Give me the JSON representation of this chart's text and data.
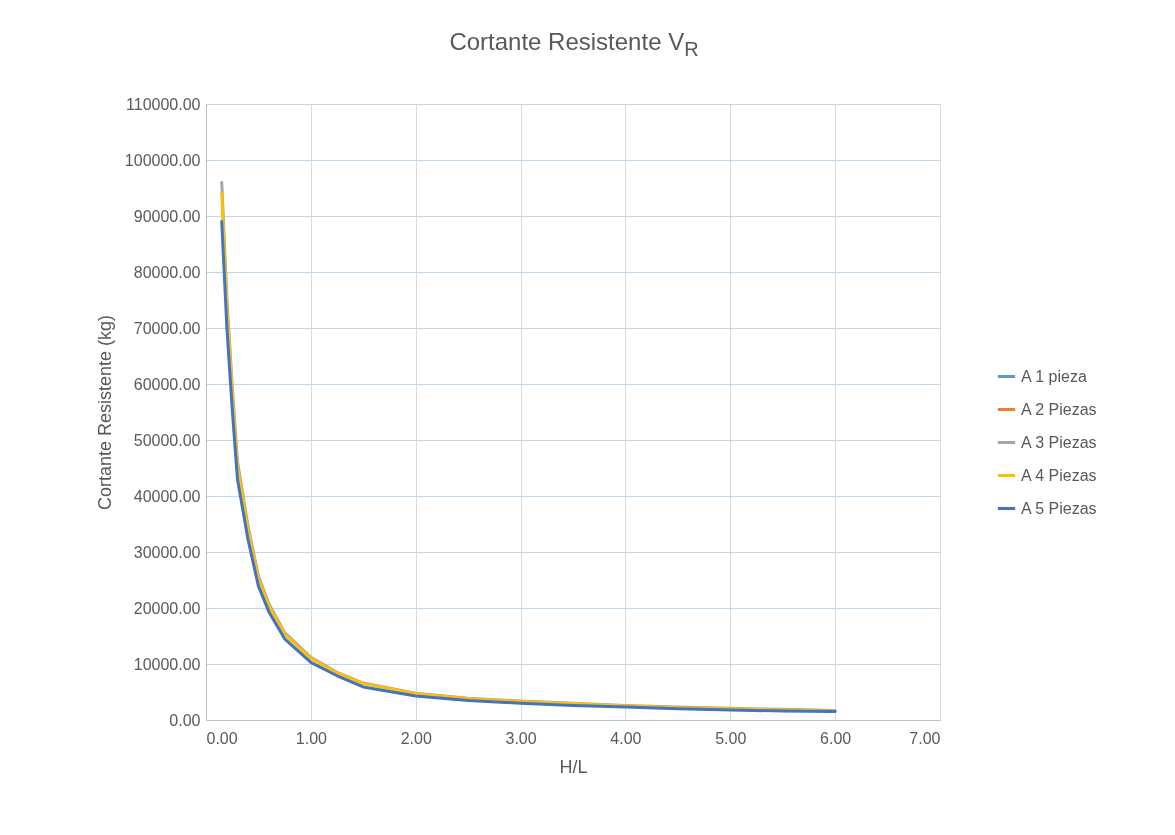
{
  "chart_data": {
    "type": "line",
    "title": "Cortante Resistente V$_{R}$",
    "xlabel": "H/L",
    "ylabel": "Cortante Resistente (kg)",
    "x": [
      0.15,
      0.2,
      0.25,
      0.3,
      0.4,
      0.5,
      0.6,
      0.75,
      1,
      1.25,
      1.5,
      2,
      2.5,
      3,
      3.5,
      4,
      4.5,
      5,
      5.5,
      6
    ],
    "series": [
      {
        "name": "A 1 pieza",
        "color": "#5b9bd5",
        "values": [
          null,
          null,
          null,
          null,
          null,
          null,
          null,
          null,
          null,
          null,
          null,
          null,
          null,
          null,
          null,
          null,
          null,
          null,
          null,
          null
        ]
      },
      {
        "name": "A 2 Piezas",
        "color": "#ed7d31",
        "values": [
          null,
          null,
          null,
          null,
          null,
          null,
          null,
          null,
          null,
          null,
          null,
          null,
          null,
          null,
          null,
          null,
          null,
          null,
          null,
          null
        ]
      },
      {
        "name": "A 3 Piezas",
        "color": "#a5a5a5",
        "values": [
          96000,
          75000,
          59700,
          46200,
          34700,
          25700,
          20700,
          15600,
          11200,
          8500,
          6600,
          4800,
          3900,
          3400,
          3000,
          2600,
          2300,
          2100,
          1900,
          1700
        ]
      },
      {
        "name": "A 4 Piezas",
        "color": "#ffc000",
        "values": [
          94000,
          73500,
          58500,
          45300,
          34000,
          25200,
          20300,
          15300,
          11000,
          8400,
          6500,
          4700,
          3800,
          3300,
          2900,
          2500,
          2200,
          2000,
          1800,
          1600
        ]
      },
      {
        "name": "A 5 Piezas",
        "color": "#4472c4",
        "values": [
          89000,
          69800,
          55500,
          43000,
          32300,
          23900,
          19300,
          14500,
          10300,
          7900,
          5900,
          4300,
          3500,
          3000,
          2600,
          2300,
          2000,
          1800,
          1600,
          1500
        ]
      }
    ],
    "xlim": [
      0,
      7
    ],
    "xticks": [
      {
        "value": 0,
        "label": "0.00"
      },
      {
        "value": 1,
        "label": "1.00"
      },
      {
        "value": 2,
        "label": "2.00"
      },
      {
        "value": 3,
        "label": "3.00"
      },
      {
        "value": 4,
        "label": "4.00"
      },
      {
        "value": 5,
        "label": "5.00"
      },
      {
        "value": 6,
        "label": "6.00"
      },
      {
        "value": 7,
        "label": "7.00"
      }
    ],
    "ylim": [
      0,
      110000
    ],
    "yticks": [
      {
        "value": 0,
        "label": "0.00"
      },
      {
        "value": 10000,
        "label": "10000.00"
      },
      {
        "value": 20000,
        "label": "20000.00"
      },
      {
        "value": 30000,
        "label": "30000.00"
      },
      {
        "value": 40000,
        "label": "40000.00"
      },
      {
        "value": 50000,
        "label": "50000.00"
      },
      {
        "value": 60000,
        "label": "60000.00"
      },
      {
        "value": 70000,
        "label": "70000.00"
      },
      {
        "value": 80000,
        "label": "80000.00"
      },
      {
        "value": 90000,
        "label": "90000.00"
      },
      {
        "value": 100000,
        "label": "100000.00"
      },
      {
        "value": 110000,
        "label": "110000.00"
      }
    ],
    "grid": true,
    "legend": "right",
    "marker": "none",
    "line_style": "solid"
  }
}
